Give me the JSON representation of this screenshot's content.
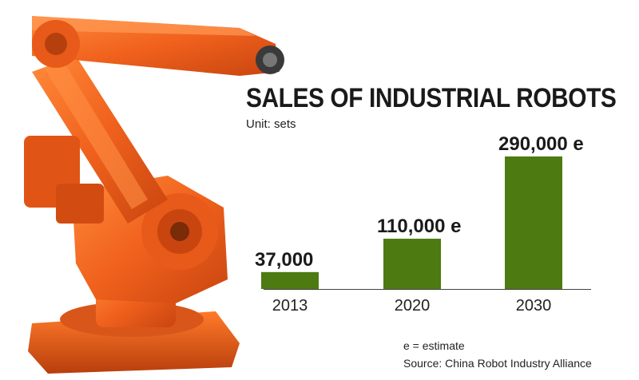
{
  "chart_data": {
    "type": "bar",
    "title": "SALES OF INDUSTRIAL ROBOTS",
    "subtitle": "Unit: sets",
    "categories": [
      "2013",
      "2020",
      "2030"
    ],
    "values": [
      37000,
      110000,
      290000
    ],
    "data_labels": [
      "37,000",
      "110,000 e",
      "290,000 e"
    ],
    "ylim": [
      0,
      290000
    ],
    "grid": false,
    "bar_color": "#4d7a11",
    "notes": [
      "e = estimate",
      "Source: China Robot Industry Alliance"
    ]
  },
  "illustration": {
    "icon": "industrial-robot-arm-icon",
    "color": "#f0611d"
  }
}
